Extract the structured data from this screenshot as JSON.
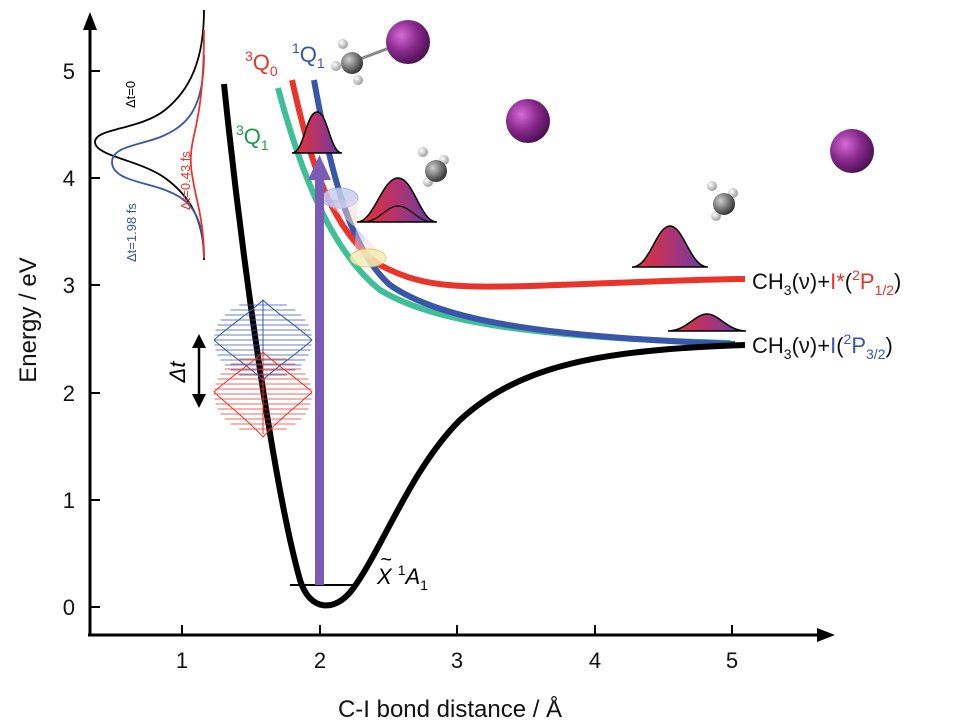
{
  "axes": {
    "xlabel": "C-I bond distance / Å",
    "ylabel": "Energy / eV",
    "x_ticks": [
      "1",
      "2",
      "3",
      "4",
      "5"
    ],
    "y_ticks": [
      "0",
      "1",
      "2",
      "3",
      "4",
      "5"
    ]
  },
  "states": {
    "q0": {
      "prefix": "3",
      "name": "Q",
      "sub": "0",
      "color": "#e8342b"
    },
    "q1_singlet": {
      "prefix": "1",
      "name": "Q",
      "sub": "1",
      "color": "#3a56a8"
    },
    "q1_triplet": {
      "prefix": "3",
      "name": "Q",
      "sub": "1",
      "color": "#1f9a4c"
    },
    "ground": {
      "tilde_letter": "X",
      "prefix": "1",
      "name": "A",
      "sub": "1",
      "color": "#000000"
    }
  },
  "curve_colors": {
    "q0": "#e8342b",
    "q1_singlet": "#3a56a8",
    "q1_triplet": "#3fbf98",
    "ground": "#000000",
    "excitation_arrow": "#7a5bb5",
    "iodine_atom": "#8b2c8f"
  },
  "asymptotes": {
    "upper": {
      "base": "CH",
      "sub1": "3",
      "mid": "(ν)+",
      "atom": "I*",
      "open": "(",
      "sup": "2",
      "term": "P",
      "term_sub": "1/2",
      "close": ")",
      "atom_color": "#e8342b"
    },
    "lower": {
      "base": "CH",
      "sub1": "3",
      "mid": "(ν)+",
      "atom": "I",
      "open": "(",
      "sup": "2",
      "term": "P",
      "term_sub": "3/2",
      "close": ")",
      "atom_color": "#3a56a8"
    }
  },
  "pulse_inset": {
    "label_black": "Δt=0",
    "label_red": "Δt=0.43 fs",
    "label_blue": "Δt=1.98 fs",
    "delay_label": "Δt"
  }
}
